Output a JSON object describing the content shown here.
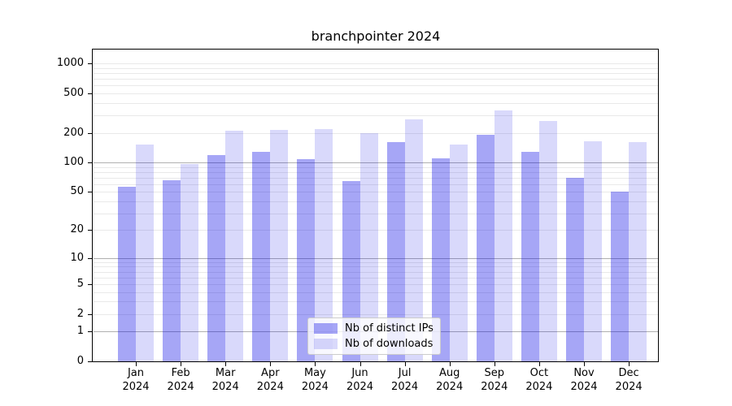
{
  "title": "branchpointer 2024",
  "chart_data": {
    "type": "bar",
    "title": "branchpointer 2024",
    "categories": [
      "Jan 2024",
      "Feb 2024",
      "Mar 2024",
      "Apr 2024",
      "May 2024",
      "Jun 2024",
      "Jul 2024",
      "Aug 2024",
      "Sep 2024",
      "Oct 2024",
      "Nov 2024",
      "Dec 2024"
    ],
    "series": [
      {
        "name": "Nb of distinct IPs",
        "color": "rgba(0,0,230,0.35)",
        "values": [
          57,
          66,
          120,
          129,
          108,
          65,
          160,
          110,
          192,
          128,
          70,
          50
        ]
      },
      {
        "name": "Nb of downloads",
        "color": "rgba(0,0,230,0.15)",
        "values": [
          152,
          96,
          210,
          214,
          218,
          200,
          275,
          152,
          340,
          263,
          164,
          162
        ]
      }
    ],
    "yticks": [
      0,
      1,
      2,
      5,
      10,
      20,
      50,
      100,
      200,
      500,
      1000
    ],
    "scale": "log1p",
    "ylim": [
      0,
      1440
    ],
    "xlabel": "",
    "ylabel": "",
    "grid": true,
    "legend_position": "lower center",
    "colors": {
      "grid_major": "#b0b0b0",
      "grid_minor": "#e9e9e9",
      "axis": "#000000",
      "background": "#ffffff"
    }
  }
}
